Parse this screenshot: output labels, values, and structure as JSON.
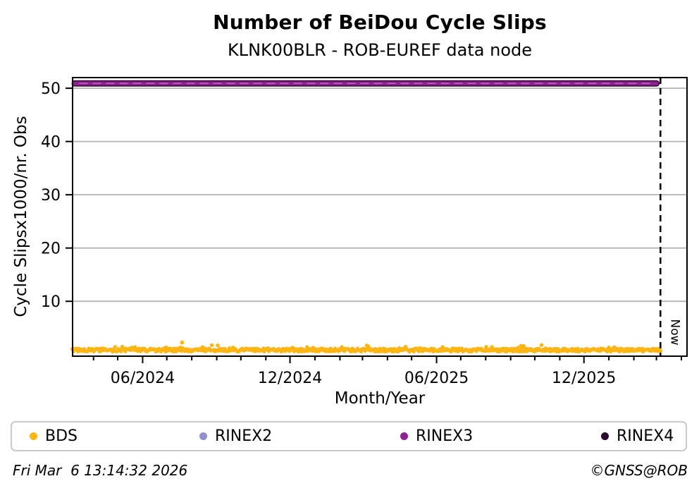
{
  "chart_data": {
    "type": "scatter",
    "title": "Number of BeiDou Cycle Slips",
    "subtitle": "KLNK00BLR - ROB-EUREF data node",
    "xlabel": "Month/Year",
    "ylabel": "Cycle Slipsx1000/nr. Obs",
    "ylim": [
      -0.3,
      52
    ],
    "yticks": [
      10,
      20,
      30,
      40,
      50
    ],
    "grid": "horizontal-gray",
    "x_axis": {
      "unit": "days from left edge of plot (~2 years shown, monthly minor ticks)",
      "day_max": 763,
      "major_ticks": [
        {
          "day": 87,
          "label": "06/2024"
        },
        {
          "day": 270,
          "label": "12/2024"
        },
        {
          "day": 452,
          "label": "06/2025"
        },
        {
          "day": 635,
          "label": "12/2025"
        }
      ],
      "minor_tick_days": [
        26,
        56,
        117,
        148,
        179,
        209,
        240,
        301,
        332,
        360,
        391,
        421,
        482,
        513,
        544,
        574,
        605,
        666,
        697,
        725,
        756
      ]
    },
    "now_marker": {
      "day": 730,
      "label": "Now",
      "style": "dashed-vertical-line"
    },
    "series": [
      {
        "name": "BDS",
        "color": "#FDB515",
        "type": "scatter-daily",
        "day_range": [
          0,
          730
        ],
        "value_base": 0.55,
        "value_spread": 0.6,
        "spike_probability": 0.1,
        "spike_extra_max": 0.7,
        "outliers": [
          {
            "day": 136,
            "value": 2.25
          }
        ],
        "seed": 20260306
      },
      {
        "name": "RINEX2",
        "color": "#9090CB",
        "type": "scatter",
        "points_visible": false
      },
      {
        "name": "RINEX3",
        "color": "#8E2190",
        "edge_color": "#3F0A3F",
        "inner_dash_color": "#C473C4",
        "type": "constant-band",
        "value": 50.9,
        "day_range": [
          0,
          725
        ]
      },
      {
        "name": "RINEX4",
        "color": "#2B0A2B",
        "type": "scatter",
        "points_visible": false
      }
    ]
  },
  "legend": {
    "items": [
      {
        "label": "BDS",
        "color": "#FDB515"
      },
      {
        "label": "RINEX2",
        "color": "#9090CB"
      },
      {
        "label": "RINEX3",
        "color": "#8E2190"
      },
      {
        "label": "RINEX4",
        "color": "#2B0A2B"
      }
    ]
  },
  "footer": {
    "timestamp": "Fri Mar  6 13:14:32 2026",
    "credit": "©GNSS@ROB"
  }
}
